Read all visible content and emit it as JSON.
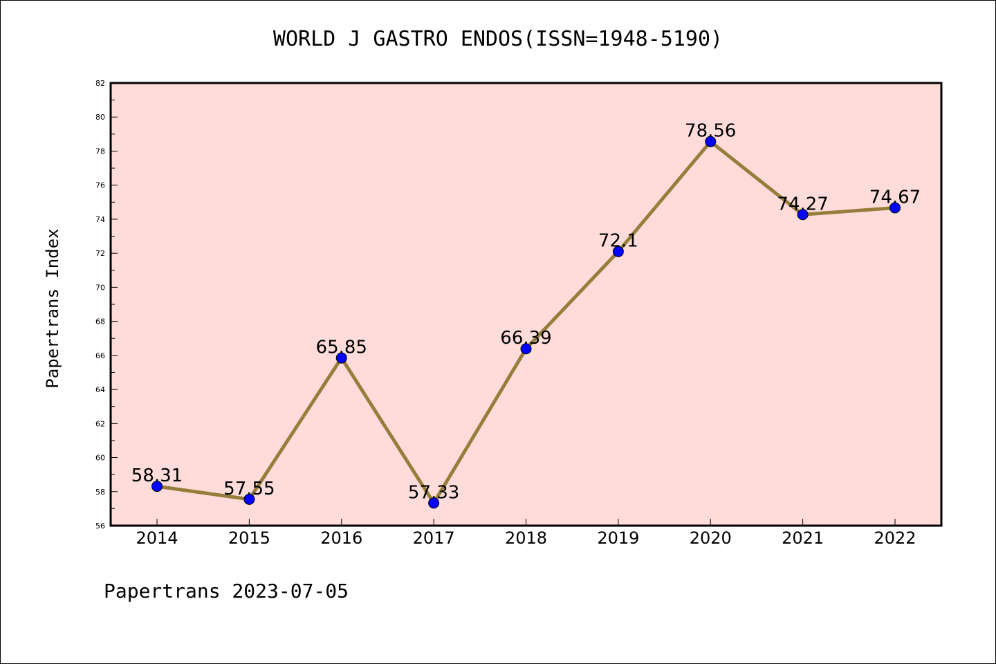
{
  "chart_data": {
    "type": "line",
    "title": "WORLD J GASTRO ENDOS(ISSN=1948-5190)",
    "xlabel": "",
    "ylabel": "Papertrans Index",
    "categories": [
      "2014",
      "2015",
      "2016",
      "2017",
      "2018",
      "2019",
      "2020",
      "2021",
      "2022"
    ],
    "values": [
      58.31,
      57.55,
      65.85,
      57.33,
      66.39,
      72.1,
      78.56,
      74.27,
      74.67
    ],
    "data_labels": [
      "58.31",
      "57.55",
      "65.85",
      "57.33",
      "66.39",
      "72.1",
      "78.56",
      "74.27",
      "74.67"
    ],
    "ylim": [
      56,
      82
    ],
    "yticks": [
      56,
      58,
      60,
      62,
      64,
      66,
      68,
      70,
      72,
      74,
      76,
      78,
      80,
      82
    ],
    "grid": false,
    "legend": "none",
    "colors": {
      "plot_background": "#FDDCDA",
      "line": "#957E3C",
      "marker": "#0000FF"
    }
  },
  "footer": {
    "text": "Papertrans 2023-07-05"
  }
}
